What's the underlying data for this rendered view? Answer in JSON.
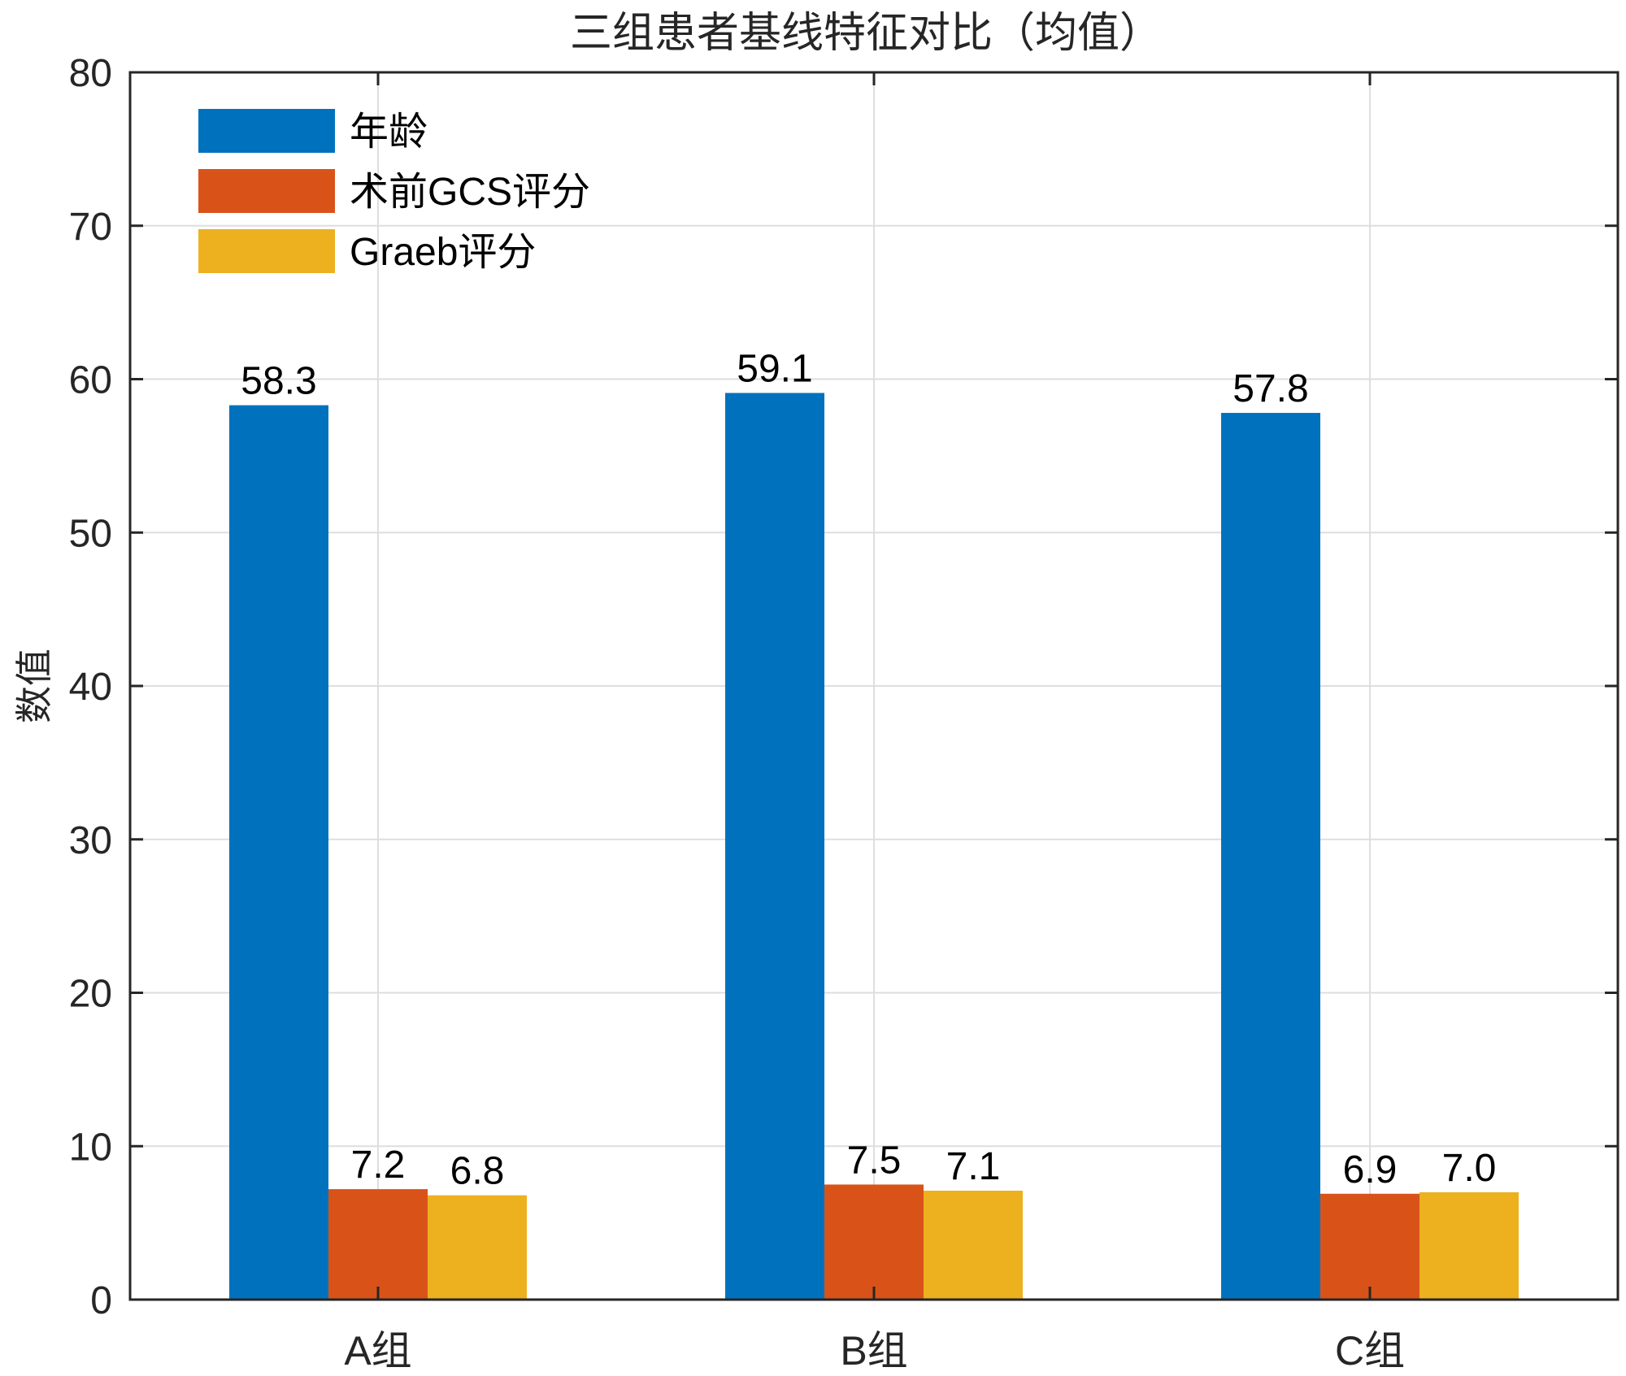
{
  "chart_data": {
    "type": "bar",
    "title": "三组患者基线特征对比（均值）",
    "xlabel": "",
    "ylabel": "数值",
    "ylim": [
      0,
      80
    ],
    "yticks": [
      0,
      10,
      20,
      30,
      40,
      50,
      60,
      70,
      80
    ],
    "grid": true,
    "legend_position": "top-left",
    "categories": [
      "A组",
      "B组",
      "C组"
    ],
    "series": [
      {
        "name": "年龄",
        "color": "#0072BD",
        "values": [
          58.3,
          59.1,
          57.8
        ],
        "labels": [
          "58.3",
          "59.1",
          "57.8"
        ]
      },
      {
        "name": "术前GCS评分",
        "color": "#D95319",
        "values": [
          7.2,
          7.5,
          6.9
        ],
        "labels": [
          "7.2",
          "7.5",
          "6.9"
        ]
      },
      {
        "name": "Graeb评分",
        "color": "#EDB120",
        "values": [
          6.8,
          7.1,
          7.0
        ],
        "labels": [
          "6.8",
          "7.1",
          "7.0"
        ]
      }
    ]
  }
}
